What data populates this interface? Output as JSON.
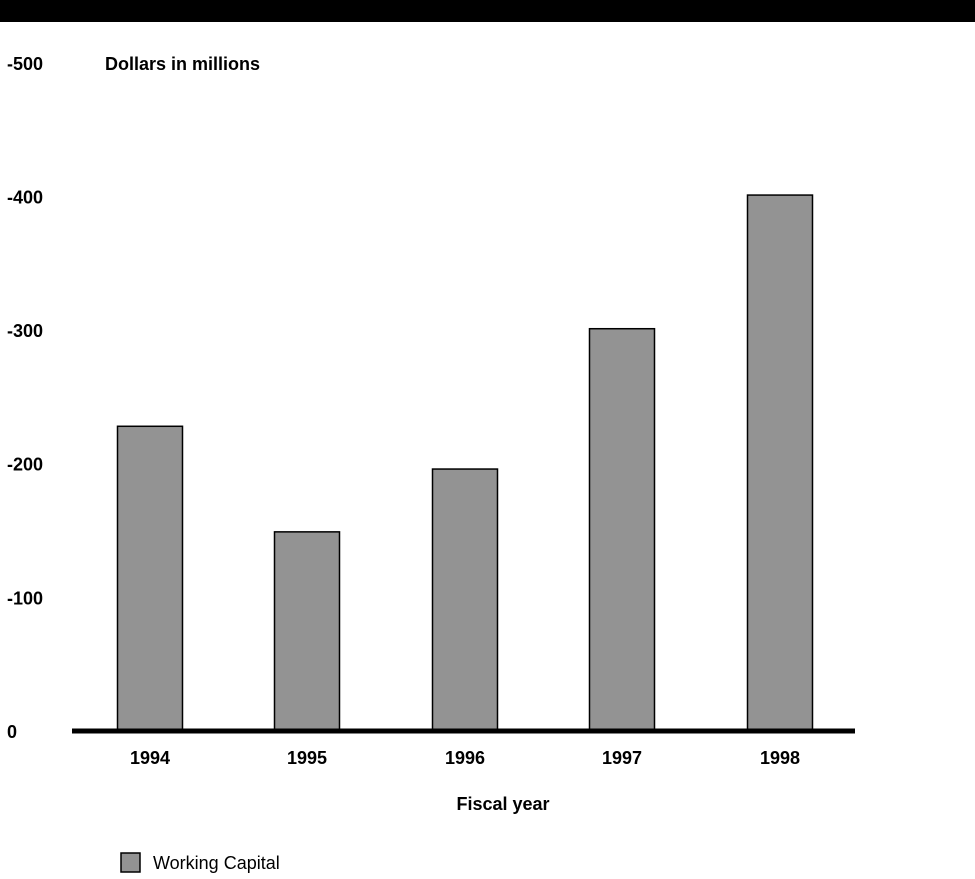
{
  "chart_data": {
    "type": "bar",
    "unit_label": "Dollars in millions",
    "xlabel": "Fiscal year",
    "categories": [
      "1994",
      "1995",
      "1996",
      "1997",
      "1998"
    ],
    "series": [
      {
        "name": "Working Capital",
        "values": [
          -228,
          -149,
          -196,
          -301,
          -401
        ],
        "color": "#939393"
      }
    ],
    "yticks": [
      {
        "value": 0,
        "label": "0"
      },
      {
        "value": -100,
        "label": "-100"
      },
      {
        "value": -200,
        "label": "-200"
      },
      {
        "value": -300,
        "label": "-300"
      },
      {
        "value": -400,
        "label": "-400"
      },
      {
        "value": -500,
        "label": "-500"
      }
    ],
    "ylim": [
      0,
      -500
    ],
    "grid": false,
    "legend_position": "bottom-left"
  },
  "colors": {
    "header_bar": "#000000",
    "bar_fill": "#939393",
    "bar_stroke": "#000000",
    "axis": "#000000"
  }
}
